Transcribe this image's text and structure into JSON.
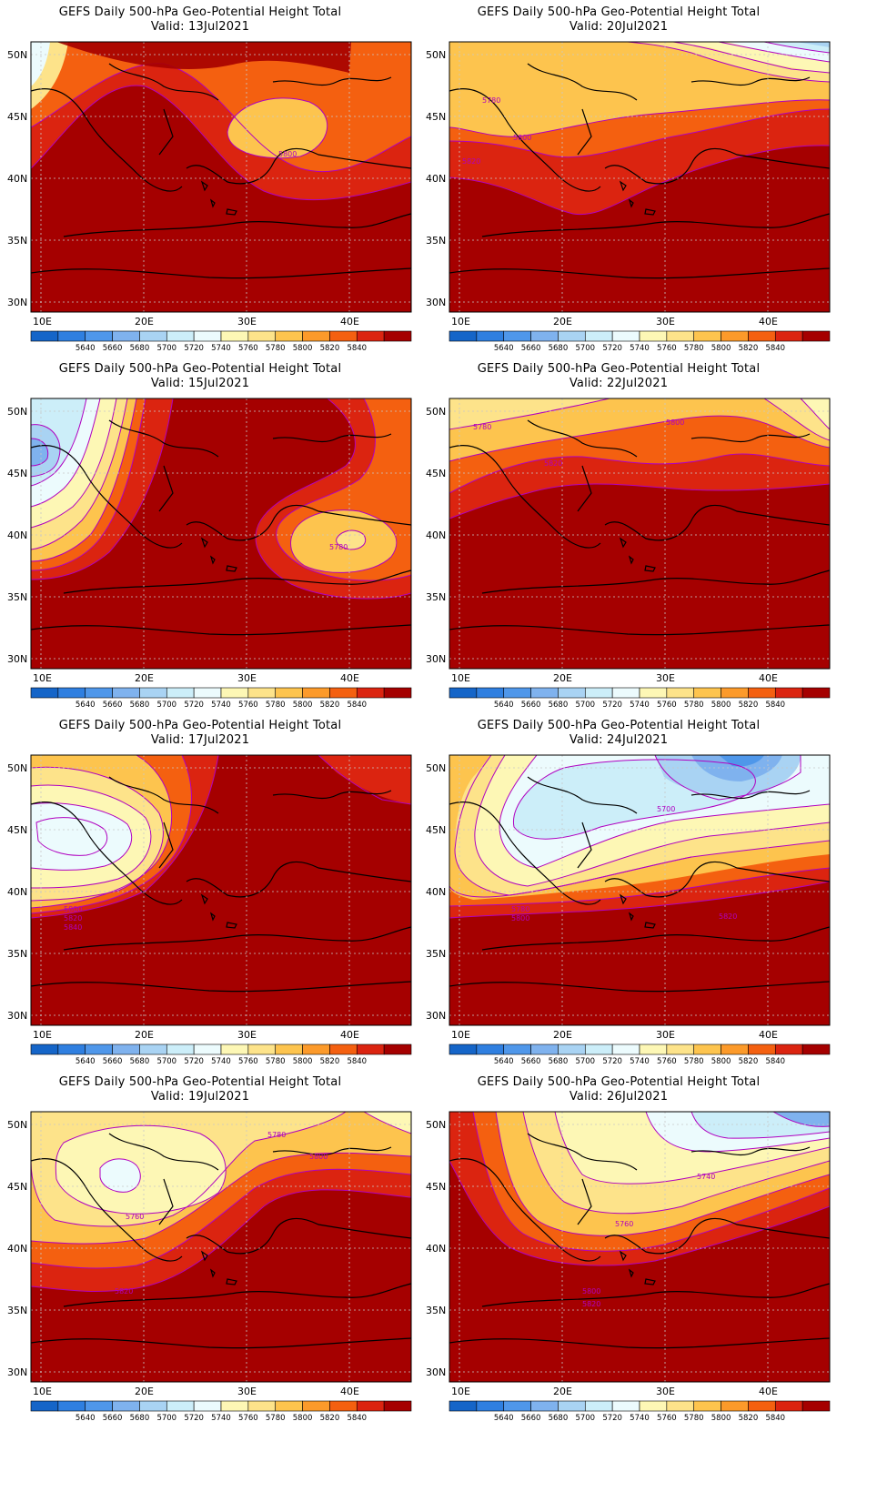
{
  "colorbar": {
    "colors": [
      "#1565c8",
      "#2f7fe0",
      "#4f97ea",
      "#7fb2ee",
      "#a9d3f3",
      "#cceef9",
      "#ecfbfd",
      "#fdf7b5",
      "#fde38a",
      "#fdc44e",
      "#fc9a2a",
      "#f46010",
      "#db2410",
      "#a50000"
    ],
    "labels": [
      "5640",
      "5660",
      "5680",
      "5700",
      "5720",
      "5740",
      "5760",
      "5780",
      "5800",
      "5820",
      "5840"
    ]
  },
  "axes": {
    "lon_labels": [
      "10E",
      "20E",
      "30E",
      "40E"
    ],
    "lat_labels": [
      "50N",
      "45N",
      "40N",
      "35N",
      "30N"
    ]
  },
  "panels": [
    {
      "title": "GEFS Daily 500-hPa Geo-Potential Height Total",
      "valid": "Valid:  13Jul2021",
      "contour_labels": [
        "5800"
      ]
    },
    {
      "title": "GEFS Daily 500-hPa Geo-Potential Height Total",
      "valid": "Valid:  20Jul2021",
      "contour_labels": [
        "5780",
        "5800",
        "5820"
      ]
    },
    {
      "title": "GEFS Daily 500-hPa Geo-Potential Height Total",
      "valid": "Valid:  15Jul2021",
      "contour_labels": [
        "5780"
      ]
    },
    {
      "title": "GEFS Daily 500-hPa Geo-Potential Height Total",
      "valid": "Valid:  22Jul2021",
      "contour_labels": [
        "5780",
        "5800",
        "5820"
      ]
    },
    {
      "title": "GEFS Daily 500-hPa Geo-Potential Height Total",
      "valid": "Valid:  17Jul2021",
      "contour_labels": [
        "5800",
        "5820",
        "5840"
      ]
    },
    {
      "title": "GEFS Daily 500-hPa Geo-Potential Height Total",
      "valid": "Valid:  24Jul2021",
      "contour_labels": [
        "5700",
        "5780",
        "5800",
        "5820"
      ]
    },
    {
      "title": "GEFS Daily 500-hPa Geo-Potential Height Total",
      "valid": "Valid:  19Jul2021",
      "contour_labels": [
        "5760",
        "5780",
        "5800",
        "5820"
      ]
    },
    {
      "title": "GEFS Daily 500-hPa Geo-Potential Height Total",
      "valid": "Valid:  26Jul2021",
      "contour_labels": [
        "5740",
        "5760",
        "5800",
        "5820"
      ]
    }
  ]
}
